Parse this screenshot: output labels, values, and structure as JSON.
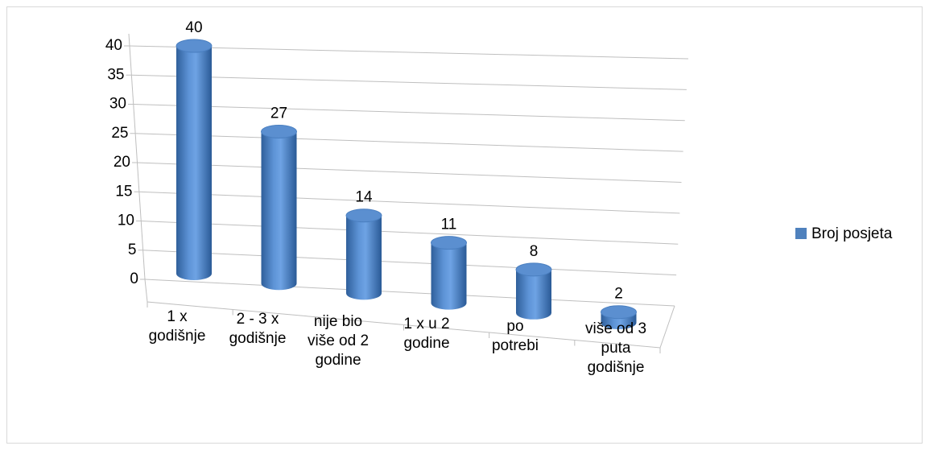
{
  "chart_data": {
    "type": "bar3d",
    "categories": [
      "1 x\ngodišnje",
      "2 - 3 x\ngodišnje",
      "nije bio\nviše od 2\ngodine",
      "1 x u 2\ngodine",
      "po\npotrebi",
      "više od 3\nputa\ngodišnje"
    ],
    "series": [
      {
        "name": "Broj posjeta",
        "color": "#4f81bd",
        "values": [
          40,
          27,
          14,
          11,
          8,
          2
        ]
      }
    ],
    "ylim": [
      0,
      40
    ],
    "yticks": [
      0,
      5,
      10,
      15,
      20,
      25,
      30,
      35,
      40
    ],
    "grid": true,
    "legend": "right"
  }
}
